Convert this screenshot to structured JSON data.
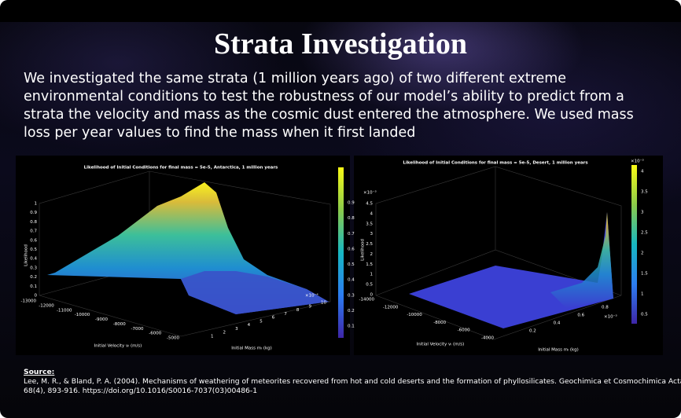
{
  "slide": {
    "title": "Strata Investigation",
    "body": [
      "We investigated the same strata (1 million years ago) of two different extreme",
      "environmental conditions to test the robustness of our model’s ability to predict from a",
      "strata the velocity and mass as the cosmic dust entered the atmosphere. We used mass",
      "loss per year values to find the mass when it first landed"
    ],
    "figures": [
      {
        "title": "Likelihood of Initial Conditions for final mass = 5e-5, Antarctica, 1 million years",
        "z_label": "Likelihood",
        "z_ticks": [
          "0",
          "0.1",
          "0.2",
          "0.3",
          "0.4",
          "0.5",
          "0.6",
          "0.7",
          "0.8",
          "0.9",
          "1"
        ],
        "colorbar_ticks": [
          "0.1",
          "0.2",
          "0.3",
          "0.4",
          "0.5",
          "0.6",
          "0.7",
          "0.8",
          "0.9"
        ],
        "x_label": "Initial Velocity vᵢ (m/s)",
        "x_ticks": [
          "-13000",
          "-12000",
          "-11000",
          "-10000",
          "-9000",
          "-8000",
          "-7000",
          "-6000",
          "-5000"
        ],
        "y_label": "Initial Mass mᵢ (kg)",
        "y_ticks": [
          "1",
          "2",
          "3",
          "4",
          "5",
          "6",
          "7",
          "8",
          "9",
          "10"
        ],
        "y_exponent": "×10⁻⁴"
      },
      {
        "title": "Likelihood of Initial Conditions for final mass = 5e-5, Desert, 1 million years",
        "z_label": "Likelihood",
        "z_ticks": [
          "0",
          "0.5",
          "1",
          "1.5",
          "2",
          "2.5",
          "3",
          "3.5",
          "4",
          "4.5"
        ],
        "z_exponent": "×10⁻³",
        "colorbar_ticks": [
          "4",
          "3.5",
          "3",
          "2.5",
          "2",
          "1.5",
          "1",
          "0.5"
        ],
        "colorbar_exponent": "×10⁻³",
        "x_label": "Initial Velocity vᵢ (m/s)",
        "x_ticks": [
          "-14000",
          "-12000",
          "-10000",
          "-8000",
          "-6000",
          "-4000"
        ],
        "y_label": "Initial Mass mᵢ (kg)",
        "y_ticks": [
          "0.2",
          "0.4",
          "0.6",
          "0.8"
        ],
        "y_exponent": "×10⁻³"
      }
    ],
    "source": {
      "heading": "Source:",
      "lines": [
        "Lee, M. R., & Bland, P. A. (2004). Mechanisms of weathering of meteorites recovered from hot and cold deserts and the formation of phyllosilicates. Geochimica et Cosmochimica Acta,",
        "68(4), 893-916. https://doi.org/10.1016/S0016-7037(03)00486-1"
      ]
    }
  }
}
